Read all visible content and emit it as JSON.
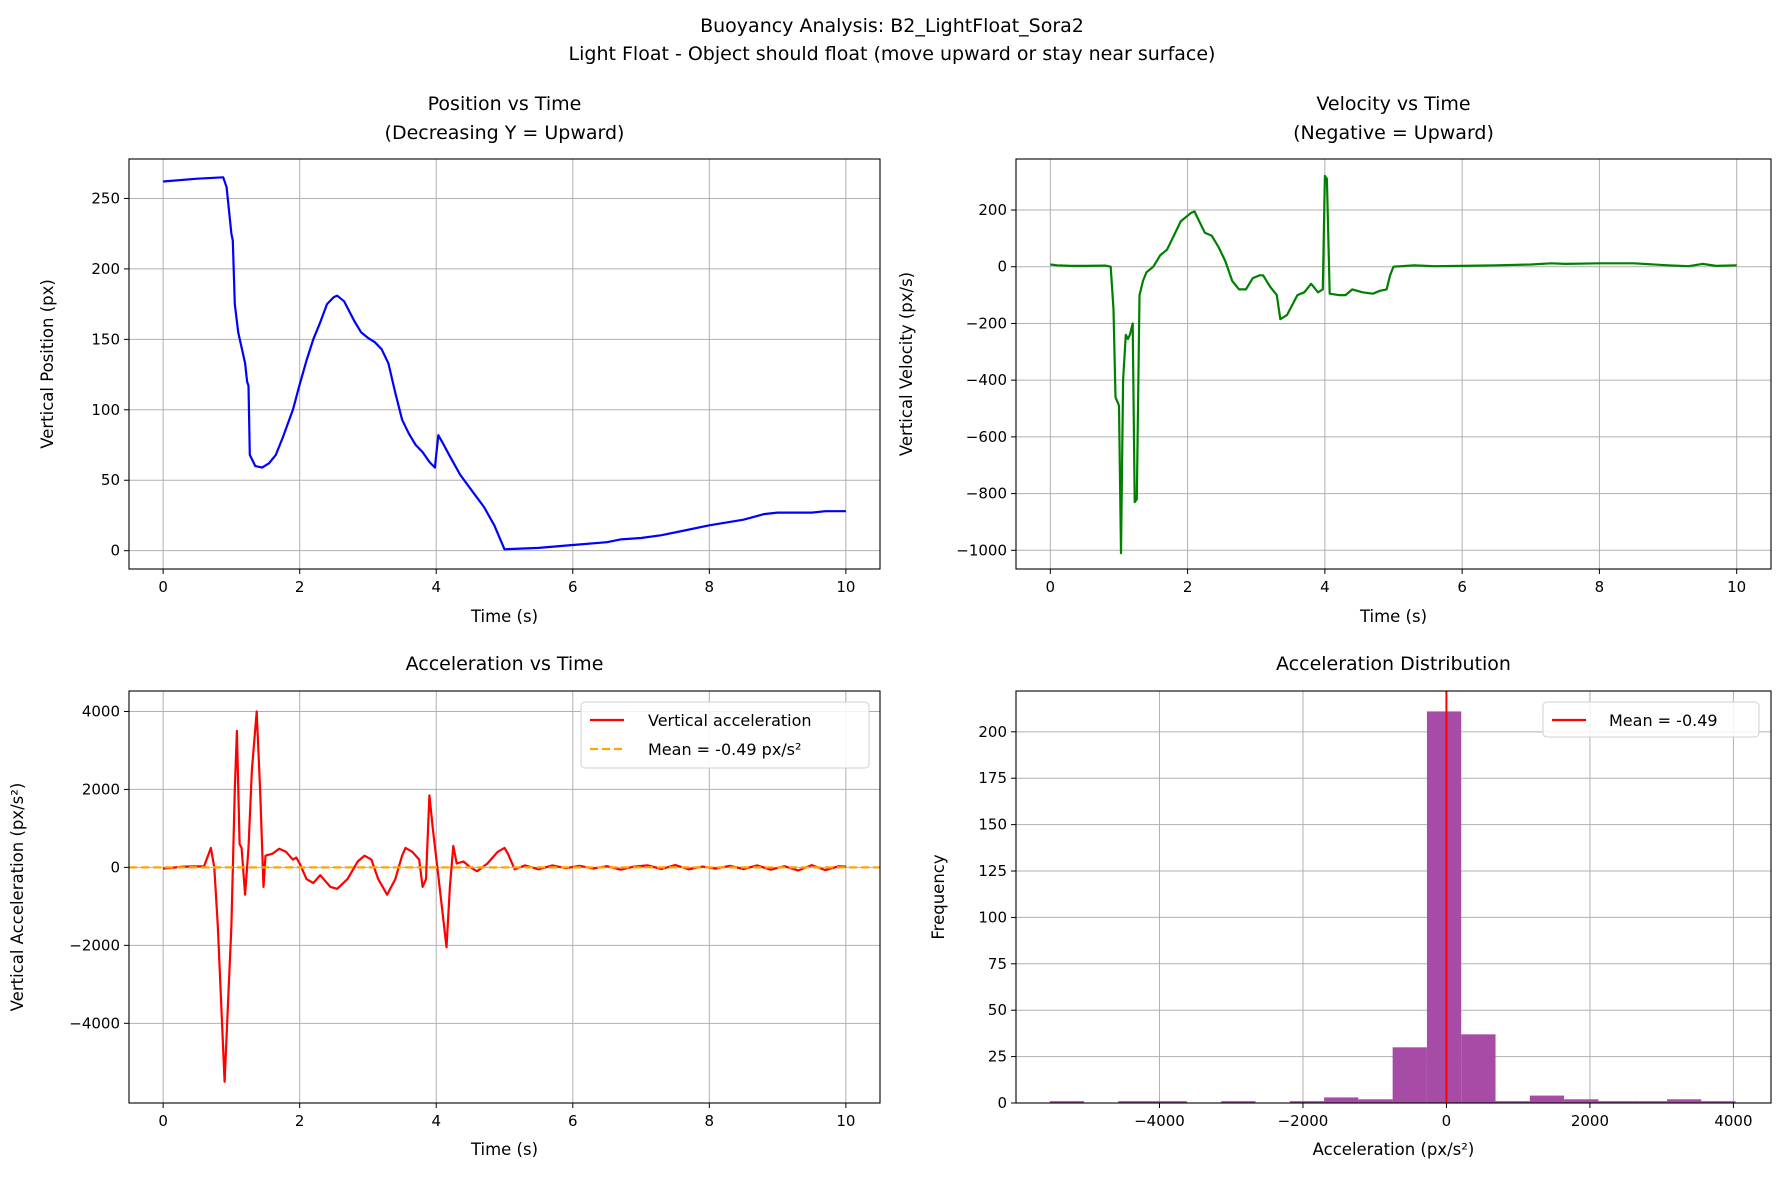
{
  "figure": {
    "suptitle_line1": "Buoyancy Analysis: B2_LightFloat_Sora2",
    "suptitle_line2": "Light Float - Object should float (move upward or stay near surface)"
  },
  "chart_data": [
    {
      "id": "position",
      "type": "line",
      "title_line1": "Position vs Time",
      "title_line2": "(Decreasing Y = Upward)",
      "xlabel": "Time (s)",
      "ylabel": "Vertical Position (px)",
      "xlim": [
        -0.5,
        10.5
      ],
      "ylim": [
        -13,
        278
      ],
      "xticks": [
        0,
        2,
        4,
        6,
        8,
        10
      ],
      "yticks": [
        0,
        50,
        100,
        150,
        200,
        250
      ],
      "grid": true,
      "color": "#0000ff",
      "series": [
        {
          "x": [
            0,
            0.5,
            0.88,
            0.93,
            1.0,
            1.02,
            1.05,
            1.1,
            1.2,
            1.23,
            1.25,
            1.27,
            1.35,
            1.45,
            1.55,
            1.65,
            1.75,
            1.9,
            2.0,
            2.1,
            2.2,
            2.3,
            2.4,
            2.5,
            2.55,
            2.65,
            2.8,
            2.9,
            3.0,
            3.1,
            3.2,
            3.3,
            3.4,
            3.5,
            3.6,
            3.7,
            3.8,
            3.9,
            3.98,
            4.03,
            4.1,
            4.2,
            4.35,
            4.5,
            4.7,
            4.85,
            5.0,
            5.5,
            6.0,
            6.5,
            6.7,
            7.0,
            7.3,
            7.6,
            8.0,
            8.5,
            8.8,
            9.0,
            9.5,
            9.7,
            10.0
          ],
          "y": [
            262,
            264,
            265,
            258,
            225,
            220,
            175,
            155,
            133,
            120,
            117,
            68,
            60,
            59,
            62,
            68,
            80,
            100,
            118,
            135,
            150,
            162,
            175,
            180,
            181,
            177,
            163,
            155,
            151,
            148,
            143,
            133,
            112,
            93,
            83,
            75,
            70,
            63,
            59,
            82,
            76,
            67,
            54,
            44,
            31,
            18,
            1,
            2,
            4,
            6,
            8,
            9,
            11,
            14,
            18,
            22,
            26,
            27,
            27,
            28,
            28
          ]
        }
      ]
    },
    {
      "id": "velocity",
      "type": "line",
      "title_line1": "Velocity vs Time",
      "title_line2": "(Negative = Upward)",
      "xlabel": "Time (s)",
      "ylabel": "Vertical Velocity (px/s)",
      "xlim": [
        -0.5,
        10.5
      ],
      "ylim": [
        -1066,
        380
      ],
      "xticks": [
        0,
        2,
        4,
        6,
        8,
        10
      ],
      "yticks": [
        -1000,
        -800,
        -600,
        -400,
        -200,
        0,
        200
      ],
      "grid": true,
      "color": "#008000",
      "series": [
        {
          "x": [
            0,
            0.1,
            0.3,
            0.5,
            0.8,
            0.88,
            0.92,
            0.95,
            1.0,
            1.03,
            1.06,
            1.1,
            1.13,
            1.16,
            1.2,
            1.23,
            1.26,
            1.3,
            1.35,
            1.4,
            1.5,
            1.6,
            1.7,
            1.8,
            1.9,
            2.0,
            2.05,
            2.1,
            2.15,
            2.25,
            2.35,
            2.45,
            2.55,
            2.65,
            2.75,
            2.85,
            2.95,
            3.05,
            3.1,
            3.2,
            3.3,
            3.35,
            3.45,
            3.6,
            3.7,
            3.8,
            3.85,
            3.9,
            3.97,
            4.0,
            4.03,
            4.07,
            4.2,
            4.3,
            4.4,
            4.55,
            4.7,
            4.8,
            4.9,
            4.95,
            5.0,
            5.3,
            5.6,
            6.0,
            6.5,
            7.0,
            7.3,
            7.5,
            8.0,
            8.5,
            9.0,
            9.3,
            9.5,
            9.7,
            10.0
          ],
          "y": [
            8,
            5,
            3,
            3,
            4,
            0,
            -150,
            -460,
            -490,
            -1010,
            -400,
            -240,
            -255,
            -240,
            -200,
            -830,
            -820,
            -100,
            -50,
            -20,
            0,
            40,
            60,
            110,
            160,
            180,
            190,
            195,
            170,
            120,
            110,
            70,
            20,
            -50,
            -80,
            -80,
            -40,
            -30,
            -30,
            -70,
            -100,
            -185,
            -170,
            -100,
            -90,
            -60,
            -75,
            -90,
            -80,
            320,
            310,
            -95,
            -100,
            -100,
            -80,
            -90,
            -95,
            -85,
            -80,
            -30,
            0,
            5,
            2,
            3,
            5,
            8,
            12,
            10,
            12,
            12,
            5,
            2,
            10,
            3,
            5
          ]
        }
      ]
    },
    {
      "id": "acceleration",
      "type": "line",
      "title": "Acceleration vs Time",
      "xlabel": "Time (s)",
      "ylabel": "Vertical Acceleration (px/s²)",
      "xlim": [
        -0.5,
        10.5
      ],
      "ylim": [
        -6044,
        4525
      ],
      "xticks": [
        0,
        2,
        4,
        6,
        8,
        10
      ],
      "yticks": [
        -4000,
        -2000,
        0,
        2000,
        4000
      ],
      "grid": true,
      "legend_position": "upper right",
      "series": [
        {
          "name": "Vertical acceleration",
          "color": "#ff0000",
          "style": "solid",
          "x": [
            0,
            0.3,
            0.6,
            0.7,
            0.75,
            0.8,
            0.9,
            0.95,
            1.0,
            1.05,
            1.08,
            1.12,
            1.15,
            1.2,
            1.25,
            1.3,
            1.37,
            1.42,
            1.47,
            1.5,
            1.6,
            1.7,
            1.8,
            1.9,
            1.95,
            2.0,
            2.1,
            2.2,
            2.3,
            2.45,
            2.55,
            2.7,
            2.85,
            2.95,
            3.05,
            3.15,
            3.28,
            3.4,
            3.5,
            3.55,
            3.65,
            3.75,
            3.8,
            3.85,
            3.9,
            3.95,
            4.05,
            4.15,
            4.2,
            4.25,
            4.3,
            4.4,
            4.5,
            4.6,
            4.75,
            4.9,
            5.0,
            5.05,
            5.15,
            5.3,
            5.5,
            5.7,
            5.9,
            6.1,
            6.3,
            6.5,
            6.7,
            6.9,
            7.1,
            7.3,
            7.5,
            7.7,
            7.9,
            8.1,
            8.3,
            8.5,
            8.7,
            8.9,
            9.1,
            9.3,
            9.5,
            9.7,
            9.9,
            10.0
          ],
          "y": [
            -30,
            20,
            30,
            500,
            0,
            -1500,
            -5500,
            -3500,
            -1500,
            2000,
            3500,
            600,
            500,
            -700,
            500,
            2500,
            4000,
            2000,
            -500,
            300,
            350,
            480,
            400,
            200,
            250,
            100,
            -300,
            -400,
            -200,
            -500,
            -550,
            -300,
            150,
            300,
            200,
            -300,
            -700,
            -300,
            300,
            500,
            400,
            200,
            -500,
            -300,
            1850,
            1000,
            -500,
            -2050,
            -500,
            550,
            100,
            150,
            0,
            -100,
            100,
            400,
            500,
            350,
            -50,
            50,
            -50,
            50,
            -20,
            40,
            -30,
            30,
            -60,
            20,
            50,
            -40,
            60,
            -50,
            20,
            -30,
            40,
            -40,
            50,
            -60,
            30,
            -80,
            60,
            -70,
            30,
            20
          ]
        },
        {
          "name": "Mean = -0.49 px/s²",
          "color": "#ffa500",
          "style": "dashed",
          "constant": -0.49
        }
      ]
    },
    {
      "id": "distribution",
      "type": "bar",
      "title": "Acceleration Distribution",
      "xlabel": "Acceleration (px/s²)",
      "ylabel": "Frequency",
      "xlim": [
        -6000,
        4524
      ],
      "ylim": [
        0,
        222
      ],
      "xticks": [
        -4000,
        -2000,
        0,
        2000,
        4000
      ],
      "yticks": [
        0,
        25,
        50,
        75,
        100,
        125,
        150,
        175,
        200
      ],
      "grid": true,
      "bar_color": "#a64ca6",
      "bin_start": -5530,
      "bin_width": 478,
      "counts": [
        1,
        0,
        1,
        1,
        0,
        1,
        0,
        1,
        3,
        2,
        30,
        211,
        37,
        1,
        4,
        2,
        1,
        1,
        2,
        1
      ],
      "mean_line": {
        "name": "Mean = -0.49",
        "value": -0.49,
        "color": "#ff0000"
      },
      "legend_position": "upper right"
    }
  ]
}
